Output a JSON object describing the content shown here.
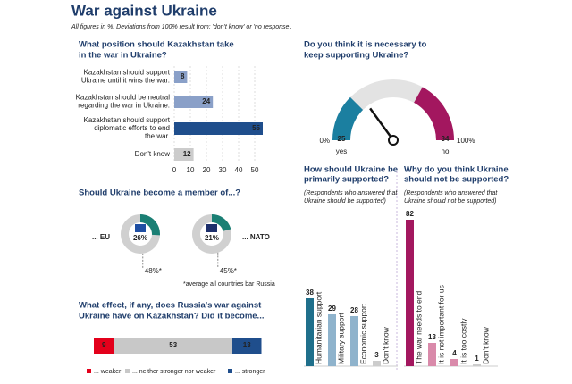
{
  "title": "War against Ukraine",
  "subtitle": "All figures in %. Deviations from 100% result from: 'don't know' or 'no response'.",
  "chart_data": [
    {
      "type": "hbar",
      "title": [
        "What position should Kazakhstan take",
        "in the war in Ukraine?"
      ],
      "categories": [
        [
          "Kazakhstan should support",
          "Ukraine until it wins the war."
        ],
        [
          "Kazakhstan should be neutral",
          "regarding the war in Ukraine."
        ],
        [
          "Kazakhstan should support",
          "diplomatic efforts to end",
          "the war."
        ],
        [
          "Don't know"
        ]
      ],
      "values": [
        8,
        24,
        55,
        12
      ],
      "colors": [
        "#8aa0c8",
        "#8aa0c8",
        "#1f4e8c",
        "#cccccc"
      ],
      "xlim": [
        0,
        55
      ],
      "xticks": [
        0,
        10,
        20,
        30,
        40,
        50
      ],
      "grid": true
    },
    {
      "type": "gauge",
      "title": [
        "Do you think it is necessary to",
        "keep supporting Ukraine?"
      ],
      "categories": [
        "yes",
        "no"
      ],
      "values": [
        25,
        34
      ],
      "colors": [
        "#1b7fa0",
        "#a3175f"
      ],
      "xlim": [
        0,
        100
      ],
      "xticks": [
        {
          "value": 0,
          "label": "0%"
        },
        {
          "value": 100,
          "label": "100%"
        }
      ],
      "needle": 30
    },
    {
      "type": "donut",
      "title": "Should Ukraine become a member of...?",
      "categories": [
        "... EU",
        "... NATO"
      ],
      "values": [
        26,
        21
      ],
      "value_labels": [
        "26%",
        "21%"
      ],
      "averages": [
        48,
        45
      ],
      "average_labels": [
        "48%*",
        "45%*"
      ],
      "note": "*average all countries bar Russia",
      "colors": [
        "#1a7f74",
        "#d0d0d0"
      ]
    },
    {
      "type": "stacked_hbar",
      "title": [
        "What effect, if any, does Russia's war against",
        "Ukraine have on Kazakhstan? Did it become..."
      ],
      "series": [
        {
          "name": "... weaker",
          "color": "#e3001b",
          "values": [
            9
          ]
        },
        {
          "name": "... neither stronger nor weaker",
          "color": "#c8c8c8",
          "values": [
            53
          ]
        },
        {
          "name": "... stronger",
          "color": "#1f4e8c",
          "values": [
            13
          ]
        }
      ]
    },
    {
      "type": "vbar",
      "title": [
        "How should Ukraine be",
        "primarily supported?"
      ],
      "title_color": "#1f6f9b",
      "subtitle": [
        "(Respondents who answered that",
        "Ukraine should be supported)"
      ],
      "categories": [
        "Humanitarian support",
        "Military support",
        "Economic support",
        "Don't know"
      ],
      "values": [
        38,
        29,
        28,
        3
      ],
      "colors": [
        "#1f6f8b",
        "#8fb3cc",
        "#8fb3cc",
        "#cccccc"
      ]
    },
    {
      "type": "vbar",
      "title": [
        "Why do you think Ukraine",
        "should not be supported?"
      ],
      "title_color": "#a3175f",
      "subtitle": [
        "(Respondents who answered that",
        "Ukraine should not be supported)"
      ],
      "categories": [
        "The war needs to end",
        "It is not important for us",
        "It is too costly",
        "Don't know"
      ],
      "values": [
        82,
        13,
        4,
        1
      ],
      "colors": [
        "#a3175f",
        "#d98aaa",
        "#d98aaa",
        "#cccccc"
      ]
    }
  ]
}
